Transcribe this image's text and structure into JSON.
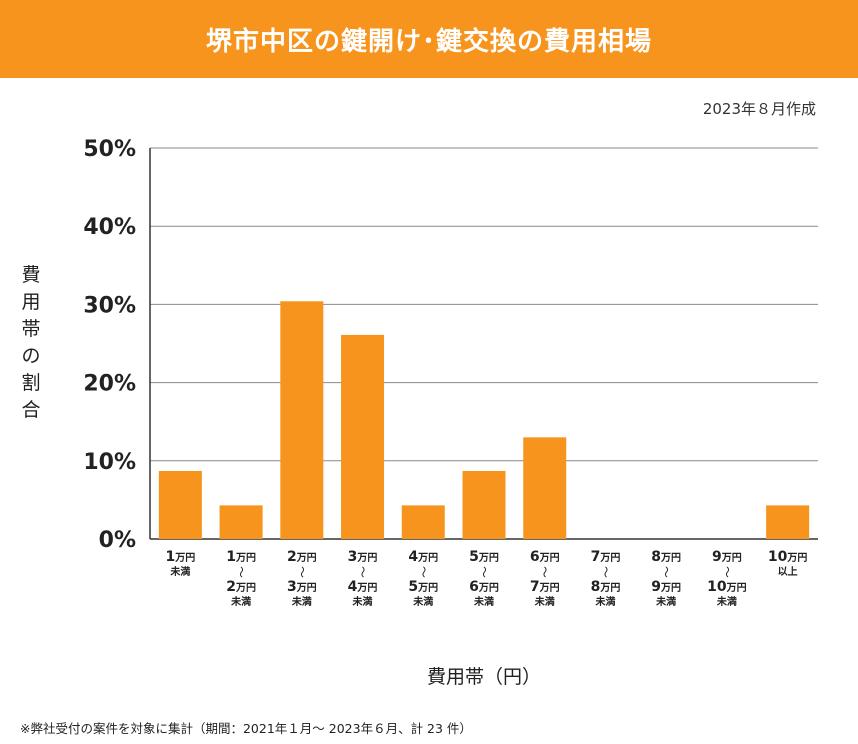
{
  "header": {
    "title": "堺市中区の鍵開け･鍵交換の費用相場"
  },
  "date_note": "2023年８月作成",
  "footnote": "※弊社受付の案件を対象に集計（期間：2021年１月～ 2023年６月、計 23 件）",
  "colors": {
    "accent": "#f7941d",
    "bar": "#f7941d",
    "grid": "#8a8a8a",
    "text": "#222222"
  },
  "chart_data": {
    "type": "bar",
    "ylabel": "費用帯の割合",
    "xlabel": "費用帯（円）",
    "ylim": [
      0,
      50
    ],
    "yticks": [
      {
        "value": 0,
        "label": "0%"
      },
      {
        "value": 10,
        "label": "10%"
      },
      {
        "value": 20,
        "label": "20%"
      },
      {
        "value": 30,
        "label": "30%"
      },
      {
        "value": 40,
        "label": "40%"
      },
      {
        "value": 50,
        "label": "50%"
      }
    ],
    "grid": true,
    "categories": [
      {
        "lines": [
          [
            "1",
            "万円"
          ],
          [
            "未満"
          ]
        ]
      },
      {
        "lines": [
          [
            "1",
            "万円"
          ],
          [
            "～"
          ],
          [
            "2",
            "万円"
          ],
          [
            "未満"
          ]
        ]
      },
      {
        "lines": [
          [
            "2",
            "万円"
          ],
          [
            "～"
          ],
          [
            "3",
            "万円"
          ],
          [
            "未満"
          ]
        ]
      },
      {
        "lines": [
          [
            "3",
            "万円"
          ],
          [
            "～"
          ],
          [
            "4",
            "万円"
          ],
          [
            "未満"
          ]
        ]
      },
      {
        "lines": [
          [
            "4",
            "万円"
          ],
          [
            "～"
          ],
          [
            "5",
            "万円"
          ],
          [
            "未満"
          ]
        ]
      },
      {
        "lines": [
          [
            "5",
            "万円"
          ],
          [
            "～"
          ],
          [
            "6",
            "万円"
          ],
          [
            "未満"
          ]
        ]
      },
      {
        "lines": [
          [
            "6",
            "万円"
          ],
          [
            "～"
          ],
          [
            "7",
            "万円"
          ],
          [
            "未満"
          ]
        ]
      },
      {
        "lines": [
          [
            "7",
            "万円"
          ],
          [
            "～"
          ],
          [
            "8",
            "万円"
          ],
          [
            "未満"
          ]
        ]
      },
      {
        "lines": [
          [
            "8",
            "万円"
          ],
          [
            "～"
          ],
          [
            "9",
            "万円"
          ],
          [
            "未満"
          ]
        ]
      },
      {
        "lines": [
          [
            "9",
            "万円"
          ],
          [
            "～"
          ],
          [
            "10",
            "万円"
          ],
          [
            "未満"
          ]
        ]
      },
      {
        "lines": [
          [
            "10",
            "万円"
          ],
          [
            "以上"
          ]
        ]
      }
    ],
    "values": [
      8.7,
      4.3,
      30.4,
      26.1,
      4.3,
      8.7,
      13.0,
      0,
      0,
      0,
      4.3
    ]
  }
}
